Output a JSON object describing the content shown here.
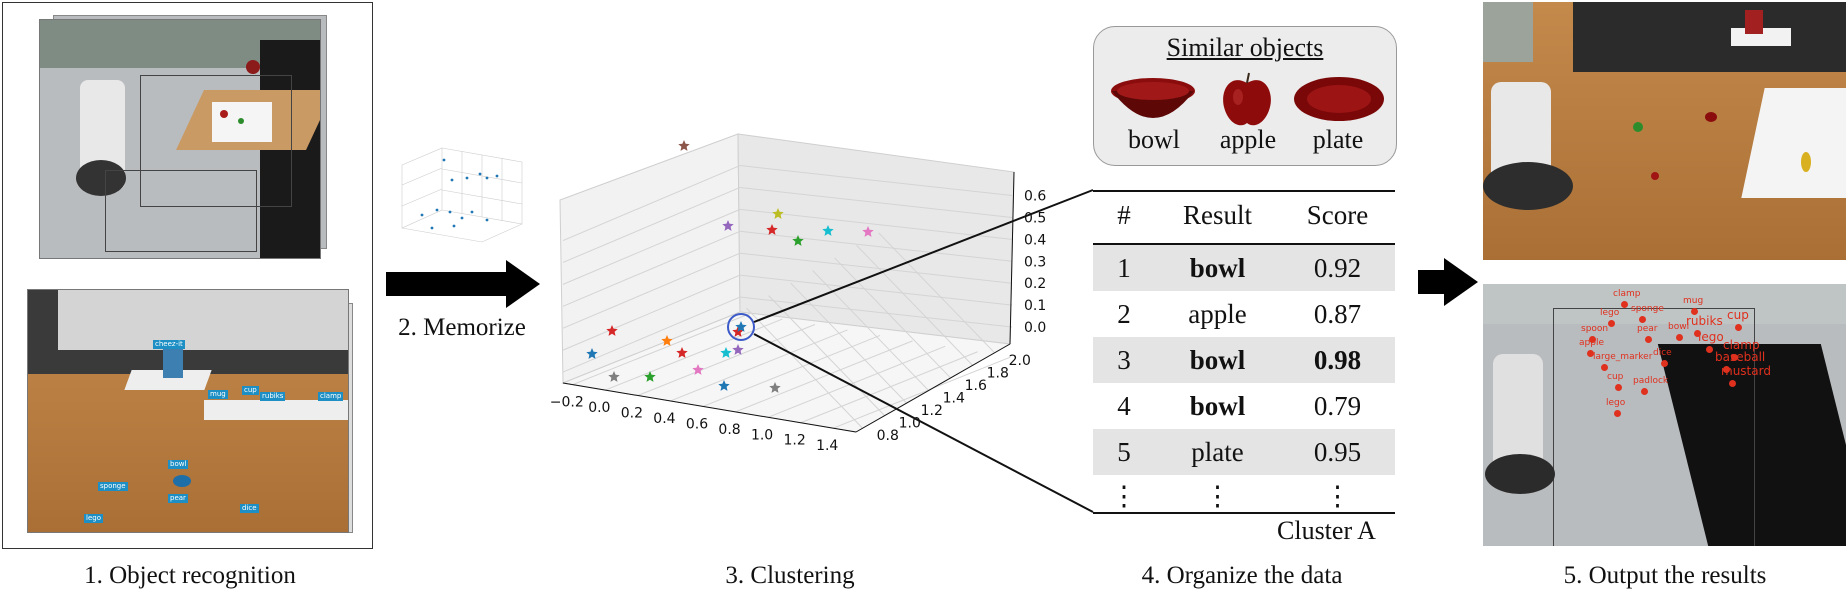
{
  "steps": {
    "s1": "1. Object recognition",
    "s2": "2. Memorize",
    "s3": "3. Clustering",
    "s4": "4. Organize the data",
    "s5": "5.  Output the results"
  },
  "recognition_tags": [
    "sponge",
    "bowl",
    "pear",
    "dice",
    "lego",
    "cup",
    "rubiks",
    "clamp",
    "mug",
    "cheez-it"
  ],
  "similar_objects": {
    "title": "Similar objects",
    "items": [
      "bowl",
      "apple",
      "plate"
    ]
  },
  "table": {
    "headers": [
      "#",
      "Result",
      "Score"
    ],
    "rows": [
      {
        "n": "1",
        "result": "bowl",
        "score": "0.92"
      },
      {
        "n": "2",
        "result": "apple",
        "score": "0.87"
      },
      {
        "n": "3",
        "result": "bowl",
        "score": "0.98"
      },
      {
        "n": "4",
        "result": "bowl",
        "score": "0.79"
      },
      {
        "n": "5",
        "result": "plate",
        "score": "0.95"
      }
    ],
    "ellipsis": "⋮",
    "cluster_label": "Cluster A"
  },
  "plot3d": {
    "x_ticks": [
      "−0.2",
      "0.0",
      "0.2",
      "0.4",
      "0.6",
      "0.8",
      "1.0",
      "1.2",
      "1.4"
    ],
    "y_ticks": [
      "0.8",
      "1.0",
      "1.2",
      "1.4",
      "1.6",
      "1.8",
      "2.0"
    ],
    "z_ticks": [
      "0.0",
      "0.1",
      "0.2",
      "0.3",
      "0.4",
      "0.5",
      "0.6"
    ],
    "star_colors": [
      "#8c564b",
      "#9467bd",
      "#bcbd22",
      "#d62728",
      "#2ca02c",
      "#17becf",
      "#e377c2",
      "#7f7f7f",
      "#1f77b4",
      "#ff7f0e"
    ]
  },
  "output_labels": [
    "clamp",
    "lego",
    "sponge",
    "mug",
    "spoon",
    "pear",
    "bowl",
    "rubiks",
    "cup",
    "apple",
    "lego",
    "large_marker",
    "dice",
    "clamp",
    "baseball",
    "cup",
    "padlock",
    "mustard",
    "lego"
  ]
}
